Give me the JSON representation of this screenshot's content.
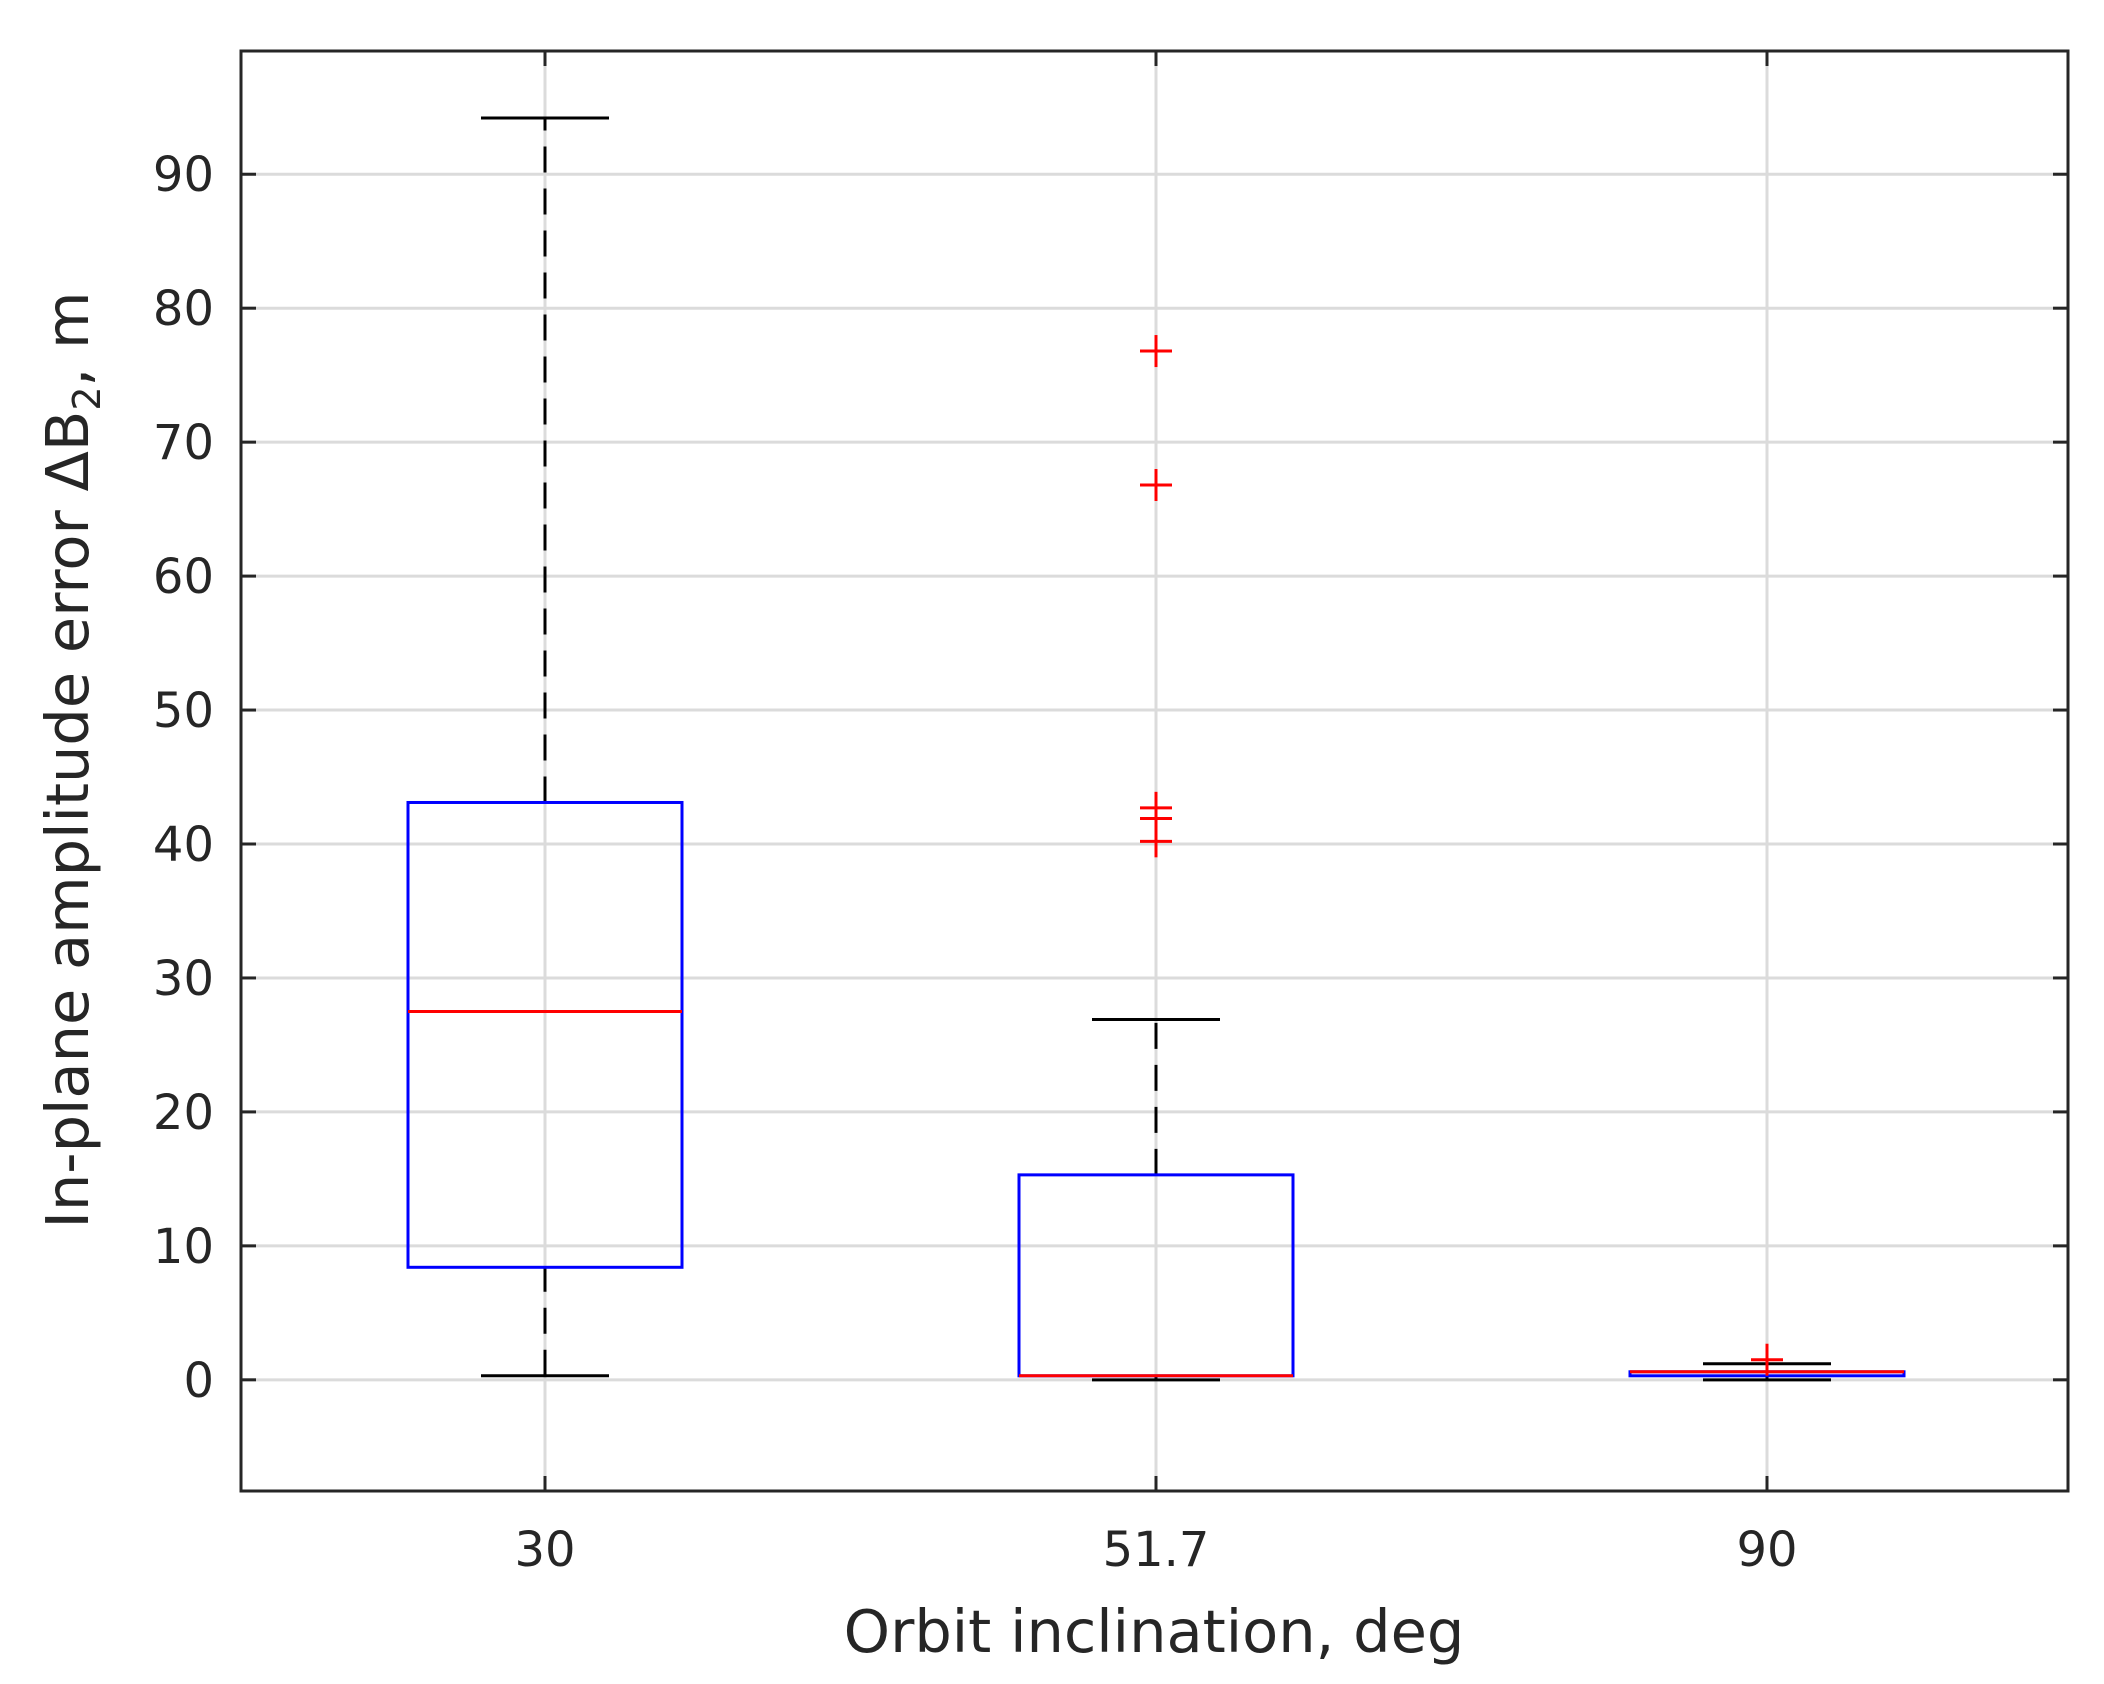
{
  "chart_data": {
    "type": "box",
    "title": "",
    "xlabel": "Orbit inclination, deg",
    "ylabel": {
      "prefix": "In-plane amplitude error ΔB",
      "subscript": "2",
      "suffix": ", m"
    },
    "ylim": [
      -8.3,
      99.2
    ],
    "yticks": [
      0,
      10,
      20,
      30,
      40,
      50,
      60,
      70,
      80,
      90
    ],
    "categories": [
      "30",
      "51.7",
      "90"
    ],
    "grid": true,
    "boxes": [
      {
        "category": "30",
        "lower_whisker": 0.3,
        "q1": 8.4,
        "median": 27.5,
        "q3": 43.1,
        "upper_whisker": 94.2,
        "outliers": []
      },
      {
        "category": "51.7",
        "lower_whisker": 0.0,
        "q1": 0.3,
        "median": 0.3,
        "q3": 15.3,
        "upper_whisker": 26.9,
        "outliers": [
          40.2,
          41.9,
          42.7,
          66.8,
          76.8
        ]
      },
      {
        "category": "90",
        "lower_whisker": 0.0,
        "q1": 0.3,
        "median": 0.6,
        "q3": 0.6,
        "upper_whisker": 1.2,
        "outliers": [
          1.5
        ]
      }
    ],
    "colors": {
      "box": "#0000ff",
      "median": "#ff0000",
      "whisker": "#000000",
      "outlier": "#ff0000",
      "grid": "#dbdbdb",
      "axis": "#262626"
    }
  }
}
